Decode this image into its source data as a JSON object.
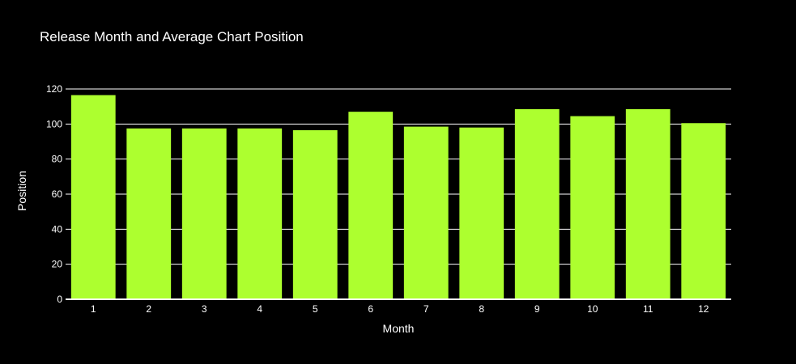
{
  "chart_data": {
    "type": "bar",
    "title": "Release Month and Average Chart Position",
    "xlabel": "Month",
    "ylabel": "Position",
    "categories": [
      "1",
      "2",
      "3",
      "4",
      "5",
      "6",
      "7",
      "8",
      "9",
      "10",
      "11",
      "12"
    ],
    "values": [
      116.5,
      97.5,
      97.5,
      97.5,
      96.5,
      107,
      98.5,
      98,
      108.5,
      104.5,
      108.5,
      100.5
    ],
    "ylim": [
      0,
      126
    ],
    "yticks": [
      0,
      20,
      40,
      60,
      80,
      100,
      120
    ],
    "grid": true,
    "legend": "none",
    "colors": {
      "bar": "#adff2f",
      "background": "#000000",
      "text": "#ffffff",
      "grid": "#ffffff"
    }
  }
}
